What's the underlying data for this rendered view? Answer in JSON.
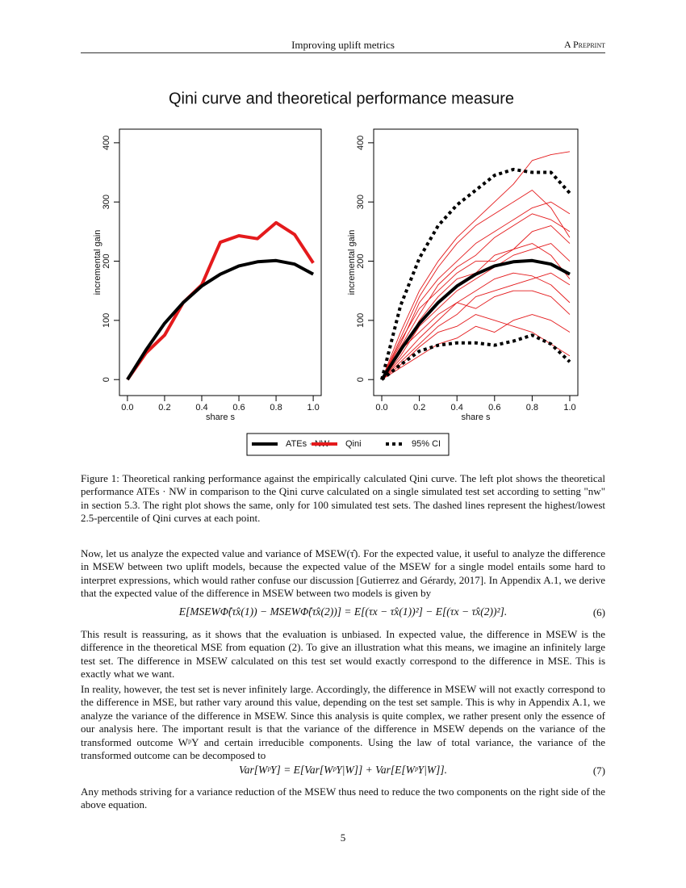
{
  "header": {
    "title": "Improving uplift metrics",
    "tag": "A Preprint"
  },
  "figure": {
    "title": "Qini curve and theoretical performance measure",
    "caption": "Figure 1: Theoretical ranking performance against the empirically calculated Qini curve. The left plot shows the theoretical performance ATEs · NW in comparison to the Qini curve calculated on a single simulated test set according to setting \"nw\" in section 5.3. The right plot shows the same, only for 100 simulated test sets. The dashed lines represent the highest/lowest 2.5-percentile of Qini curves at each point."
  },
  "chart_data": [
    {
      "type": "line",
      "x_label": "share s",
      "y_label": "incremental gain",
      "x": [
        0,
        0.1,
        0.2,
        0.3,
        0.4,
        0.5,
        0.6,
        0.7,
        0.8,
        0.9,
        1.0
      ],
      "xlim": [
        -0.043,
        1.043
      ],
      "ylim": [
        -27,
        423
      ],
      "xticks": [
        {
          "value": 0,
          "label": "0.0"
        },
        0.2,
        0.4,
        0.6,
        0.8,
        {
          "value": 1,
          "label": "1.0"
        }
      ],
      "yticks": [
        0,
        100,
        200,
        300,
        400
      ],
      "series": [
        {
          "color": "#000000",
          "values": [
            0,
            50,
            95,
            130,
            158,
            178,
            192,
            199,
            201,
            195,
            178
          ]
        },
        {
          "color": "#e41a1c",
          "values": [
            0,
            45,
            75,
            130,
            160,
            232,
            243,
            238,
            265,
            245,
            197
          ]
        }
      ]
    },
    {
      "type": "line",
      "x_label": "share s",
      "y_label": "incremental gain",
      "x": [
        0,
        0.1,
        0.2,
        0.3,
        0.4,
        0.5,
        0.6,
        0.7,
        0.8,
        0.9,
        1.0
      ],
      "xlim": [
        -0.043,
        1.043
      ],
      "ylim": [
        -27,
        423
      ],
      "xticks": [
        {
          "value": 0,
          "label": "0.0"
        },
        0.2,
        0.4,
        0.6,
        0.8,
        {
          "value": 1,
          "label": "1.0"
        }
      ],
      "yticks": [
        0,
        100,
        200,
        300,
        400
      ],
      "series": [
        {
          "name": "ATEs · NW",
          "color": "#000000",
          "values": [
            0,
            50,
            95,
            130,
            158,
            178,
            192,
            199,
            201,
            195,
            178
          ]
        },
        {
          "name": "Qini",
          "color": "#e41a1c",
          "curves": [
            [
              0,
              80,
              150,
              200,
              240,
              270,
              300,
              330,
              370,
              380,
              385
            ],
            [
              0,
              60,
              130,
              170,
              200,
              230,
              250,
              270,
              290,
              300,
              280
            ],
            [
              0,
              40,
              90,
              120,
              150,
              170,
              190,
              210,
              220,
              230,
              200
            ],
            [
              0,
              30,
              60,
              90,
              110,
              140,
              150,
              160,
              170,
              180,
              160
            ],
            [
              0,
              55,
              110,
              160,
              190,
              210,
              240,
              260,
              280,
              270,
              250
            ],
            [
              0,
              20,
              40,
              60,
              70,
              90,
              80,
              100,
              110,
              100,
              80
            ],
            [
              0,
              45,
              100,
              140,
              170,
              180,
              210,
              220,
              230,
              210,
              170
            ],
            [
              0,
              70,
              140,
              190,
              230,
              260,
              280,
              300,
              320,
              290,
              240
            ],
            [
              0,
              35,
              70,
              100,
              130,
              150,
              170,
              180,
              175,
              160,
              130
            ],
            [
              0,
              50,
              80,
              110,
              130,
              120,
              140,
              150,
              150,
              140,
              110
            ],
            [
              0,
              25,
              55,
              80,
              90,
              110,
              100,
              90,
              80,
              60,
              40
            ],
            [
              0,
              65,
              120,
              150,
              180,
              200,
              200,
              220,
              250,
              260,
              230
            ]
          ]
        },
        {
          "name": "95% CI",
          "color": "#000000",
          "curves": [
            [
              0,
              125,
              205,
              260,
              295,
              320,
              345,
              355,
              350,
              350,
              315
            ],
            [
              0,
              25,
              48,
              58,
              62,
              62,
              58,
              65,
              75,
              60,
              30
            ]
          ]
        }
      ]
    }
  ],
  "body": {
    "p1": "Now, let us analyze the expected value and variance of MSEW(τ̂). For the expected value, it useful to analyze the difference in MSEW between two uplift models, because the expected value of the MSEW for a single model entails some hard to interpret expressions, which would rather confuse our discussion [Gutierrez and Gérardy, 2017]. In Appendix A.1, we derive that the expected value of the difference in MSEW between two models is given by",
    "eq6": "E[MSEWΦ̂(τ̂x(1)) − MSEWΦ̂(τ̂x(2))] = E[(τx − τ̂x(1))²] − E[(τx − τ̂x(2))²].",
    "eq6_number": "(6)",
    "p2": "This result is reassuring, as it shows that the evaluation is unbiased. In expected value, the difference in MSEW is the difference in the theoretical MSE from equation (2). To give an illustration what this means, we imagine an infinitely large test set. The difference in MSEW calculated on this test set would exactly correspond to the difference in MSE. This is exactly what we want.",
    "p3": "In reality, however, the test set is never infinitely large. Accordingly, the difference in MSEW will not exactly correspond to the difference in MSE, but rather vary around this value, depending on the test set sample. This is why in Appendix A.1, we analyze the variance of the difference in MSEW. Since this analysis is quite complex, we rather present only the essence of our analysis here. The important result is that the variance of the difference in MSEW depends on the variance of the transformed outcome WᵖY and certain irreducible components. Using the law of total variance, the variance of the transformed outcome can be decomposed to",
    "eq7": "Var[WᵖY] = E[Var[WᵖY|W]] + Var[E[WᵖY|W]].",
    "eq7_number": "(7)",
    "p4": "Any methods striving for a variance reduction of the MSEW thus need to reduce the two components on the right side of the above equation."
  },
  "page_number": "5"
}
